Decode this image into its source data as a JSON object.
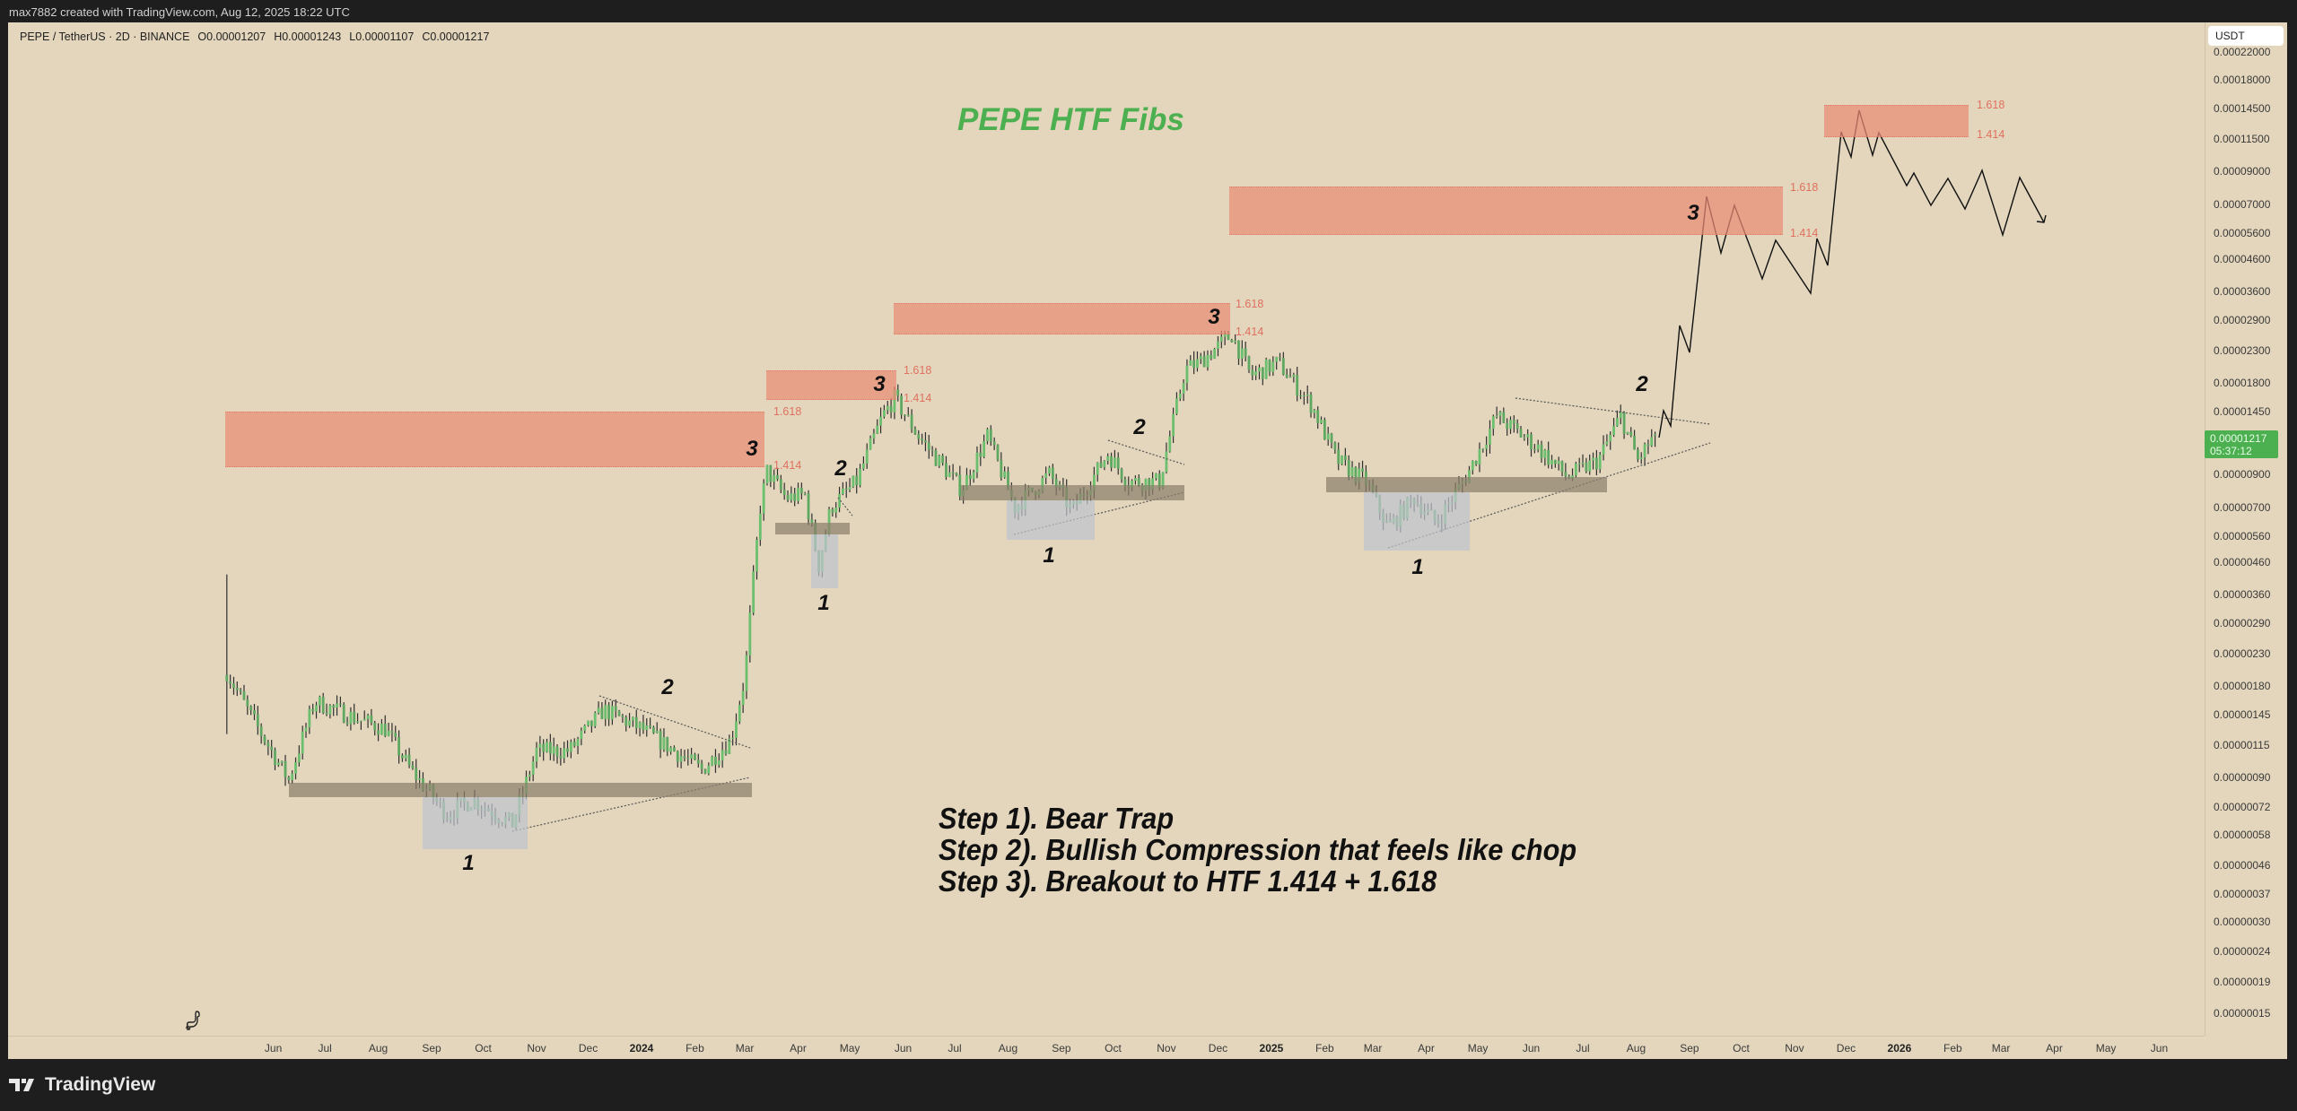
{
  "topbar": {
    "attribution": "max7882 created with TradingView.com, Aug 12, 2025 18:22 UTC"
  },
  "legend": {
    "symbol": "PEPE / TetherUS · 2D · BINANCE",
    "open": "O0.00001207",
    "high": "H0.00001243",
    "low": "L0.00001107",
    "close": "C0.00001217"
  },
  "price_axis": {
    "currency": "USDT",
    "last_price": "0.00001217",
    "countdown": "05:37:12",
    "ticks": [
      "0.00022000",
      "0.00018000",
      "0.00014500",
      "0.00011500",
      "0.00009000",
      "0.00007000",
      "0.00005600",
      "0.00004600",
      "0.00003600",
      "0.00002900",
      "0.00002300",
      "0.00001800",
      "0.00001450",
      "0.00000900",
      "0.00000700",
      "0.00000560",
      "0.00000460",
      "0.00000360",
      "0.00000290",
      "0.00000230",
      "0.00000180",
      "0.00000145",
      "0.00000115",
      "0.00000090",
      "0.00000072",
      "0.00000058",
      "0.00000046",
      "0.00000037",
      "0.00000030",
      "0.00000024",
      "0.00000019",
      "0.00000015"
    ]
  },
  "time_axis": {
    "ticks": [
      {
        "label": "Jun",
        "date": "2023-06-01"
      },
      {
        "label": "Jul",
        "date": "2023-07-01"
      },
      {
        "label": "Aug",
        "date": "2023-08-01"
      },
      {
        "label": "Sep",
        "date": "2023-09-01"
      },
      {
        "label": "Oct",
        "date": "2023-10-01"
      },
      {
        "label": "Nov",
        "date": "2023-11-01"
      },
      {
        "label": "Dec",
        "date": "2023-12-01"
      },
      {
        "label": "2024",
        "date": "2024-01-01",
        "year": true
      },
      {
        "label": "Feb",
        "date": "2024-02-01"
      },
      {
        "label": "Mar",
        "date": "2024-03-01"
      },
      {
        "label": "Apr",
        "date": "2024-04-01"
      },
      {
        "label": "May",
        "date": "2024-05-01"
      },
      {
        "label": "Jun",
        "date": "2024-06-01"
      },
      {
        "label": "Jul",
        "date": "2024-07-01"
      },
      {
        "label": "Aug",
        "date": "2024-08-01"
      },
      {
        "label": "Sep",
        "date": "2024-09-01"
      },
      {
        "label": "Oct",
        "date": "2024-10-01"
      },
      {
        "label": "Nov",
        "date": "2024-11-01"
      },
      {
        "label": "Dec",
        "date": "2024-12-01"
      },
      {
        "label": "2025",
        "date": "2025-01-01",
        "year": true
      },
      {
        "label": "Feb",
        "date": "2025-02-01"
      },
      {
        "label": "Mar",
        "date": "2025-03-01"
      },
      {
        "label": "Apr",
        "date": "2025-04-01"
      },
      {
        "label": "May",
        "date": "2025-05-01"
      },
      {
        "label": "Jun",
        "date": "2025-06-01"
      },
      {
        "label": "Jul",
        "date": "2025-07-01"
      },
      {
        "label": "Aug",
        "date": "2025-08-01"
      },
      {
        "label": "Sep",
        "date": "2025-09-01"
      },
      {
        "label": "Oct",
        "date": "2025-10-01"
      },
      {
        "label": "Nov",
        "date": "2025-11-01"
      },
      {
        "label": "Dec",
        "date": "2025-12-01"
      },
      {
        "label": "2026",
        "date": "2026-01-01",
        "year": true
      },
      {
        "label": "Feb",
        "date": "2026-02-01"
      },
      {
        "label": "Mar",
        "date": "2026-03-01"
      },
      {
        "label": "Apr",
        "date": "2026-04-01"
      },
      {
        "label": "May",
        "date": "2026-05-01"
      },
      {
        "label": "Jun",
        "date": "2026-06-01"
      }
    ]
  },
  "annotations": {
    "title": "PEPE HTF Fibs",
    "steps": [
      "Step 1). Bear Trap",
      "Step 2). Bullish Compression that feels like chop",
      "Step 3). Breakout to HTF 1.414 + 1.618"
    ],
    "fib_upper": "1.618",
    "fib_lower": "1.414",
    "waves": [
      "1",
      "2",
      "3",
      "1",
      "2",
      "3",
      "1",
      "2",
      "3",
      "1",
      "2",
      "3"
    ]
  },
  "colors": {
    "background": "#e3d6bc",
    "up": "#6cbf6f",
    "wick": "#2f2f2f",
    "fib_zone": "#ea8c76",
    "fib_label": "#e0705f",
    "title": "#4caf50",
    "last_price": "#4caf50"
  },
  "chart_data": {
    "type": "candlestick",
    "interval": "2D",
    "scale": "log",
    "ylim": [
      1.4e-07,
      0.00023
    ],
    "last_bar": {
      "open": 1.207e-05,
      "high": 1.243e-05,
      "low": 1.107e-05,
      "close": 1.217e-05
    },
    "price_path": [
      [
        "2023-05-05",
        2e-06
      ],
      [
        "2023-05-20",
        1.4e-06
      ],
      [
        "2023-06-10",
        8.8e-07
      ],
      [
        "2023-06-25",
        1.6e-06
      ],
      [
        "2023-07-20",
        1.4e-06
      ],
      [
        "2023-08-05",
        1.3e-06
      ],
      [
        "2023-08-20",
        9.5e-07
      ],
      [
        "2023-09-10",
        6.8e-07
      ],
      [
        "2023-09-25",
        7.6e-07
      ],
      [
        "2023-10-18",
        6.3e-07
      ],
      [
        "2023-11-01",
        1.1e-06
      ],
      [
        "2023-11-20",
        1.1e-06
      ],
      [
        "2023-12-10",
        1.5e-06
      ],
      [
        "2024-01-01",
        1.3e-06
      ],
      [
        "2024-01-20",
        1.1e-06
      ],
      [
        "2024-02-05",
        9.5e-07
      ],
      [
        "2024-02-22",
        1.2e-06
      ],
      [
        "2024-03-01",
        1.9e-06
      ],
      [
        "2024-03-05",
        3.5e-06
      ],
      [
        "2024-03-10",
        7e-06
      ],
      [
        "2024-03-14",
        9.2e-06
      ],
      [
        "2024-03-25",
        7.5e-06
      ],
      [
        "2024-04-05",
        7.7e-06
      ],
      [
        "2024-04-13",
        4.5e-06
      ],
      [
        "2024-04-20",
        7e-06
      ],
      [
        "2024-05-05",
        8.5e-06
      ],
      [
        "2024-05-20",
        1.4e-05
      ],
      [
        "2024-05-27",
        1.6e-05
      ],
      [
        "2024-06-10",
        1.2e-05
      ],
      [
        "2024-07-05",
        8e-06
      ],
      [
        "2024-07-20",
        1.2e-05
      ],
      [
        "2024-08-05",
        7e-06
      ],
      [
        "2024-08-25",
        9e-06
      ],
      [
        "2024-09-07",
        6.8e-06
      ],
      [
        "2024-09-28",
        1.05e-05
      ],
      [
        "2024-10-10",
        8.5e-06
      ],
      [
        "2024-10-28",
        8.5e-06
      ],
      [
        "2024-11-12",
        2e-05
      ],
      [
        "2024-11-20",
        2.1e-05
      ],
      [
        "2024-12-09",
        2.6e-05
      ],
      [
        "2024-12-20",
        1.9e-05
      ],
      [
        "2025-01-05",
        2.1e-05
      ],
      [
        "2025-01-25",
        1.5e-05
      ],
      [
        "2025-02-08",
        1e-05
      ],
      [
        "2025-02-25",
        8.5e-06
      ],
      [
        "2025-03-10",
        6e-06
      ],
      [
        "2025-03-25",
        7.5e-06
      ],
      [
        "2025-04-07",
        6.2e-06
      ],
      [
        "2025-04-25",
        9e-06
      ],
      [
        "2025-05-12",
        1.4e-05
      ],
      [
        "2025-06-05",
        1.1e-05
      ],
      [
        "2025-06-22",
        8.8e-06
      ],
      [
        "2025-07-10",
        1e-05
      ],
      [
        "2025-07-23",
        1.4e-05
      ],
      [
        "2025-08-02",
        1e-05
      ],
      [
        "2025-08-12",
        1.217e-05
      ]
    ]
  }
}
